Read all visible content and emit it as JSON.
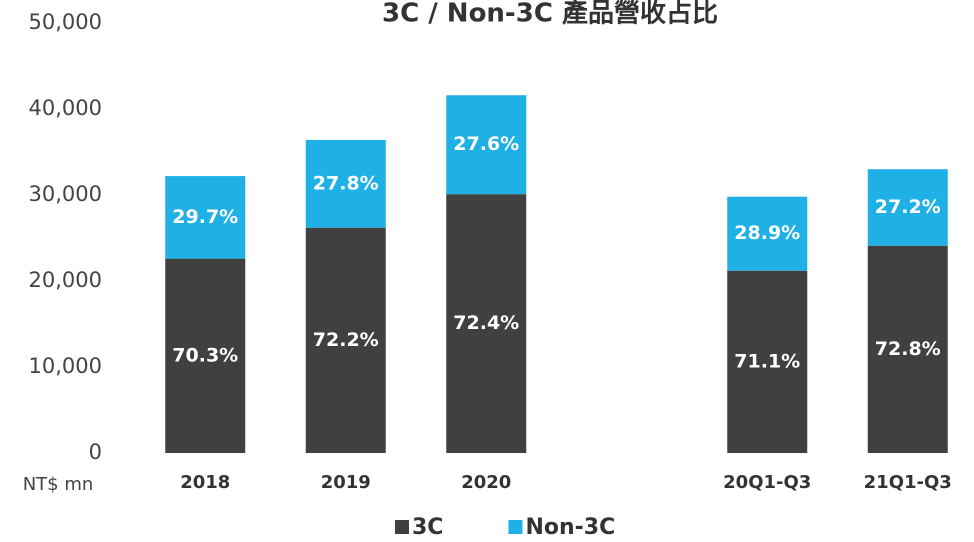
{
  "chart_data": {
    "type": "stacked_bar",
    "title": "3C / Non-3C 產品營收占比",
    "y_label": "NT$ mn",
    "categories": [
      "2018",
      "2019",
      "2020",
      null,
      "20Q1-Q3",
      "21Q1-Q3"
    ],
    "series": [
      {
        "name": "3C",
        "color": "#404040",
        "values": [
          22600,
          26200,
          30100,
          null,
          21200,
          24100
        ],
        "share_labels": [
          "70.3%",
          "72.2%",
          "72.4%",
          null,
          "71.1%",
          "72.8%"
        ]
      },
      {
        "name": "Non-3C",
        "color": "#1fb0e6",
        "values": [
          9600,
          10200,
          11500,
          null,
          8600,
          8900
        ],
        "share_labels": [
          "29.7%",
          "27.8%",
          "27.6%",
          null,
          "28.9%",
          "27.2%"
        ]
      }
    ],
    "ylim": [
      0,
      50000
    ],
    "yticks": [
      0,
      {
        "value": 10000,
        "label": "10,000"
      },
      {
        "value": 20000,
        "label": "20,000"
      },
      {
        "value": 30000,
        "label": "30,000"
      },
      {
        "value": 40000,
        "label": "40,000"
      },
      {
        "value": 50000,
        "label": "50,000"
      }
    ],
    "grid": false,
    "legend": "bottom"
  }
}
